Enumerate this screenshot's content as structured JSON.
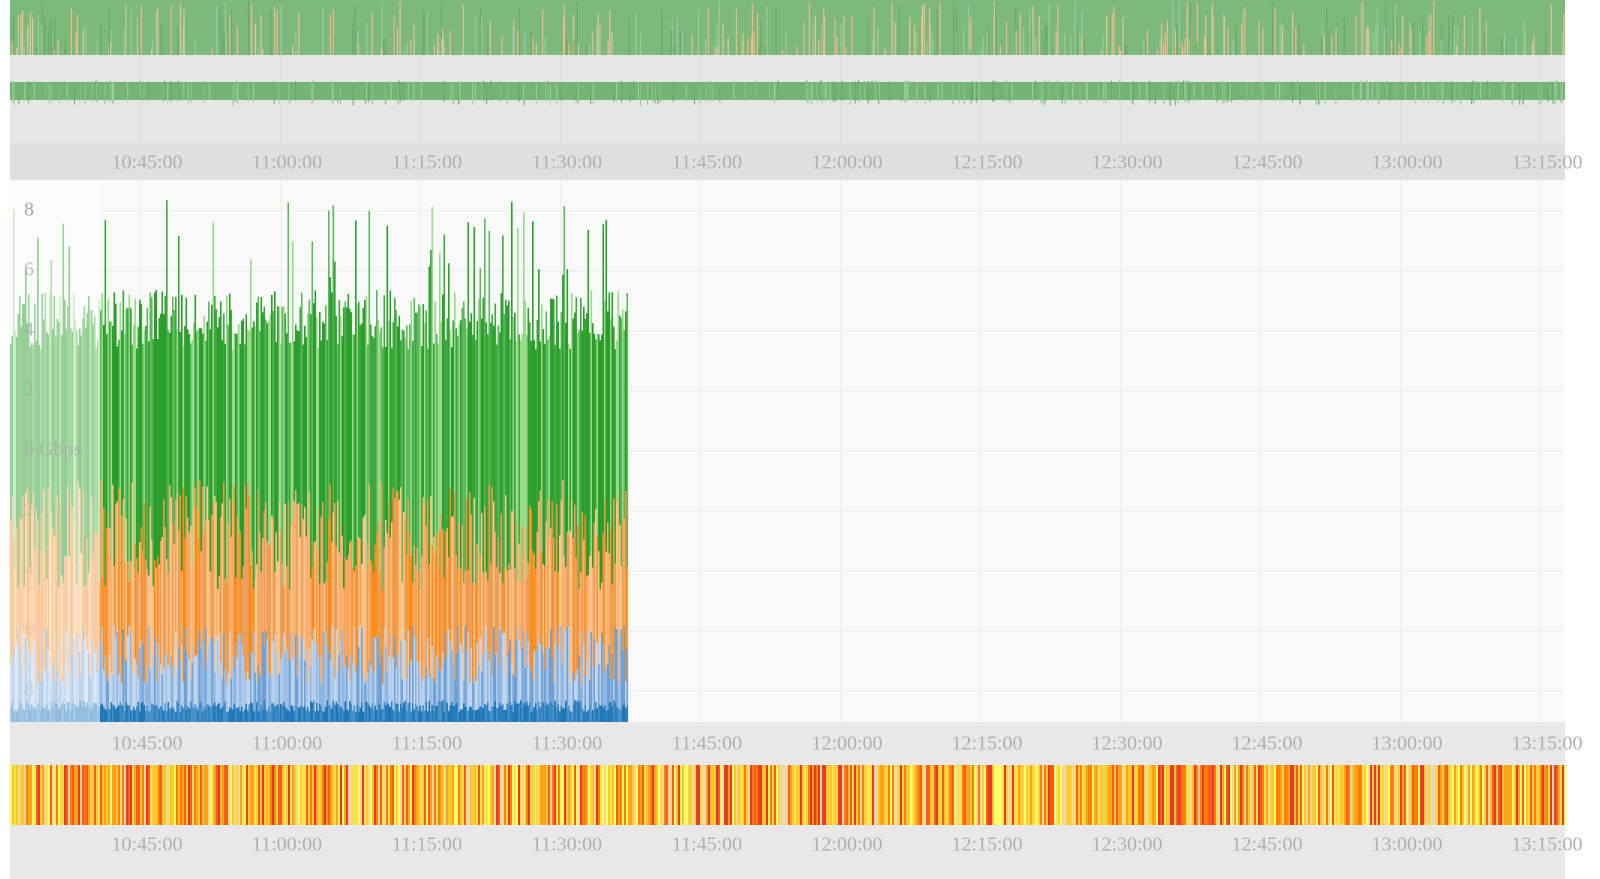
{
  "time_ticks": [
    "10:45:00",
    "11:00:00",
    "11:15:00",
    "11:30:00",
    "11:45:00",
    "12:00:00",
    "12:15:00",
    "12:30:00",
    "12:45:00",
    "13:00:00",
    "13:15:00"
  ],
  "y_labels": [
    "8",
    "6",
    "4",
    "2",
    "0 Gbps",
    "2",
    "4",
    "6",
    "8"
  ]
}
